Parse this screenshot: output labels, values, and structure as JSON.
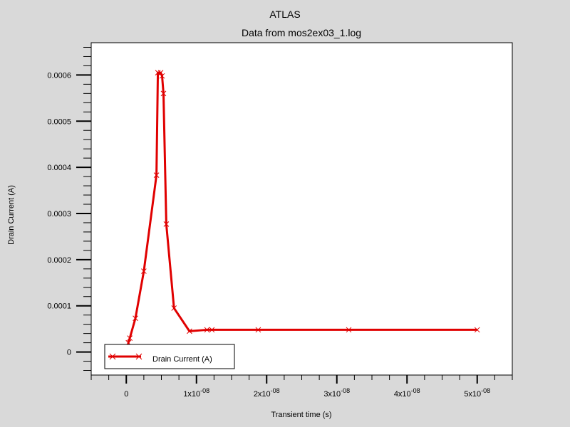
{
  "chart_data": {
    "type": "line",
    "title": "ATLAS",
    "subtitle": "Data from mos2ex03_1.log",
    "xlabel": "Transient time (s)",
    "ylabel": "Drain Current (A)",
    "xlim": [
      -5e-09,
      5.5e-08
    ],
    "ylim": [
      -5e-05,
      0.00067
    ],
    "x_ticks": [
      {
        "value": 0,
        "mantissa": "0",
        "exponent": ""
      },
      {
        "value": 1e-08,
        "mantissa": "1x10",
        "exponent": "-08"
      },
      {
        "value": 2e-08,
        "mantissa": "2x10",
        "exponent": "-08"
      },
      {
        "value": 3e-08,
        "mantissa": "3x10",
        "exponent": "-08"
      },
      {
        "value": 4e-08,
        "mantissa": "4x10",
        "exponent": "-08"
      },
      {
        "value": 5e-08,
        "mantissa": "5x10",
        "exponent": "-08"
      }
    ],
    "y_ticks": [
      {
        "value": 0,
        "label": "0"
      },
      {
        "value": 0.0001,
        "label": "0.0001"
      },
      {
        "value": 0.0002,
        "label": "0.0002"
      },
      {
        "value": 0.0003,
        "label": "0.0003"
      },
      {
        "value": 0.0004,
        "label": "0.0004"
      },
      {
        "value": 0.0005,
        "label": "0.0005"
      },
      {
        "value": 0.0006,
        "label": "0.0006"
      }
    ],
    "grid": false,
    "legend": {
      "position": "bottom-left"
    },
    "series": [
      {
        "name": "Drain Current (A)",
        "color": "#e00000",
        "marker": "x",
        "x": [
          2e-10,
          3e-10,
          5e-10,
          1.3e-09,
          2.5e-09,
          4.3e-09,
          4.5e-09,
          4.9e-09,
          5.1e-09,
          5.3e-09,
          5.7e-09,
          6.8e-09,
          9e-09,
          1.15e-08,
          1.22e-08,
          1.88e-08,
          3.17e-08,
          5e-08
        ],
        "y": [
          2e-06,
          2e-05,
          3e-05,
          7.3e-05,
          0.000175,
          0.000383,
          0.000605,
          0.000605,
          0.000598,
          0.00056,
          0.000277,
          9.5e-05,
          4.5e-05,
          4.8e-05,
          4.8e-05,
          4.8e-05,
          4.8e-05,
          4.8e-05
        ]
      }
    ]
  }
}
